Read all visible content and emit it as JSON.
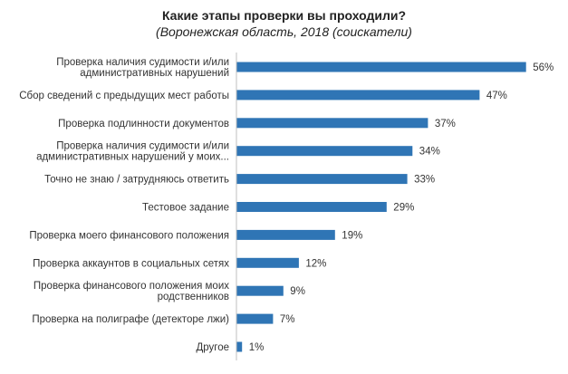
{
  "chart_data": {
    "type": "bar",
    "orientation": "horizontal",
    "title": "Какие этапы проверки вы проходили?",
    "subtitle": "(Воронежская область, 2018 (соискатели)",
    "categories": [
      [
        "Проверка наличия судимости и/или",
        "административных нарушений"
      ],
      [
        "Сбор сведений с предыдущих мест работы"
      ],
      [
        "Проверка подлинности документов"
      ],
      [
        "Проверка наличия судимости и/или",
        "административных нарушений у моих..."
      ],
      [
        "Точно не знаю / затрудняюсь ответить"
      ],
      [
        "Тестовое задание"
      ],
      [
        "Проверка моего финансового положения"
      ],
      [
        "Проверка аккаунтов в социальных сетях"
      ],
      [
        "Проверка финансового положения моих",
        "родственников"
      ],
      [
        "Проверка на полиграфе (детекторе лжи)"
      ],
      [
        "Другое"
      ]
    ],
    "values": [
      56,
      47,
      37,
      34,
      33,
      29,
      19,
      12,
      9,
      7,
      1
    ],
    "value_labels": [
      "56%",
      "47%",
      "37%",
      "34%",
      "33%",
      "29%",
      "19%",
      "12%",
      "9%",
      "7%",
      "1%"
    ],
    "xlim": [
      0,
      60
    ],
    "bar_color": "#2f75b5",
    "grid": false,
    "legend": "none"
  }
}
